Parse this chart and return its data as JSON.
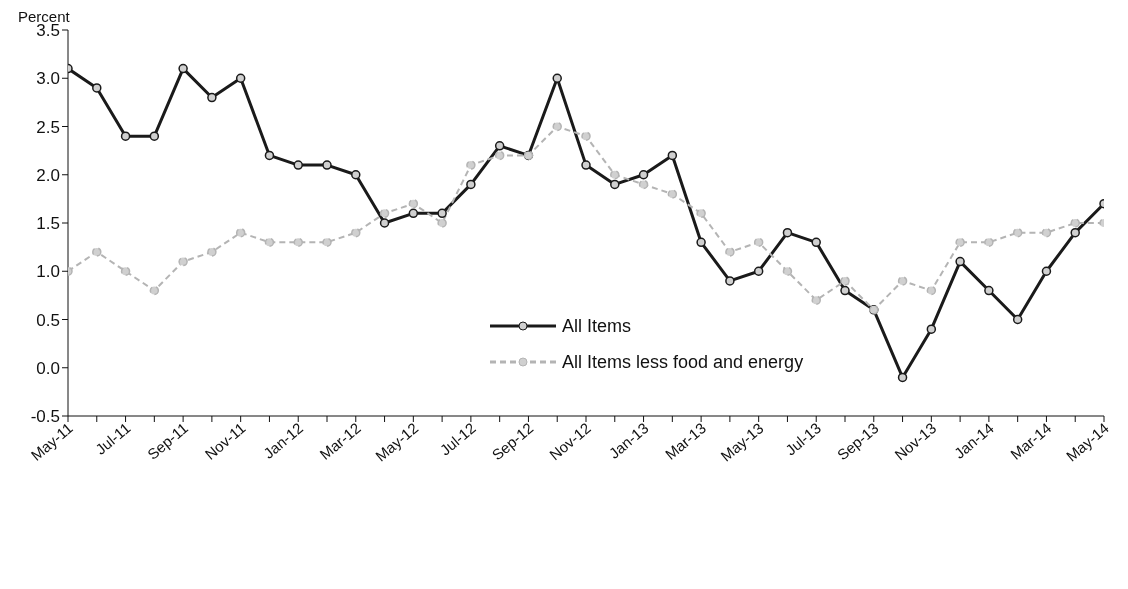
{
  "chart_data": {
    "type": "line",
    "ylabel": "Percent",
    "categories": [
      "May-11",
      null,
      "Jul-11",
      null,
      "Sep-11",
      null,
      "Nov-11",
      null,
      "Jan-12",
      null,
      "Mar-12",
      null,
      "May-12",
      null,
      "Jul-12",
      null,
      "Sep-12",
      null,
      "Nov-12",
      null,
      "Jan-13",
      null,
      "Mar-13",
      null,
      "May-13",
      null,
      "Jul-13",
      null,
      "Sep-13",
      null,
      "Nov-13",
      null,
      "Jan-14",
      null,
      "Mar-14",
      null,
      "May-14"
    ],
    "series": [
      {
        "name": "All Items",
        "color": "#1a1a1a",
        "line_style": "solid",
        "values": [
          3.1,
          2.9,
          2.4,
          2.4,
          3.1,
          2.8,
          3.0,
          2.2,
          2.1,
          2.1,
          2.0,
          1.5,
          1.6,
          1.6,
          1.9,
          2.3,
          2.2,
          3.0,
          2.1,
          1.9,
          2.0,
          2.2,
          1.3,
          0.9,
          1.0,
          1.4,
          1.3,
          0.8,
          0.6,
          -0.1,
          0.4,
          1.1,
          0.8,
          0.5,
          1.0,
          1.4,
          1.7
        ]
      },
      {
        "name": "All Items less food and energy",
        "color": "#b4b4b4",
        "line_style": "dashed",
        "values": [
          1.0,
          1.2,
          1.0,
          0.8,
          1.1,
          1.2,
          1.4,
          1.3,
          1.3,
          1.3,
          1.4,
          1.6,
          1.7,
          1.5,
          2.1,
          2.2,
          2.2,
          2.5,
          2.4,
          2.0,
          1.9,
          1.8,
          1.6,
          1.2,
          1.3,
          1.0,
          0.7,
          0.9,
          0.6,
          0.9,
          0.8,
          1.3,
          1.3,
          1.4,
          1.4,
          1.5,
          1.5
        ]
      }
    ],
    "ylim": [
      -0.5,
      3.5
    ],
    "yticks": [
      -0.5,
      {
        "value": 0,
        "label": "0.0"
      },
      0.5,
      {
        "value": 1,
        "label": "1.0"
      },
      1.5,
      {
        "value": 2,
        "label": "2.0"
      },
      2.5,
      {
        "value": 3,
        "label": "3.0"
      },
      3.5
    ],
    "grid": false,
    "legend": "bottom",
    "marker": "circle"
  }
}
